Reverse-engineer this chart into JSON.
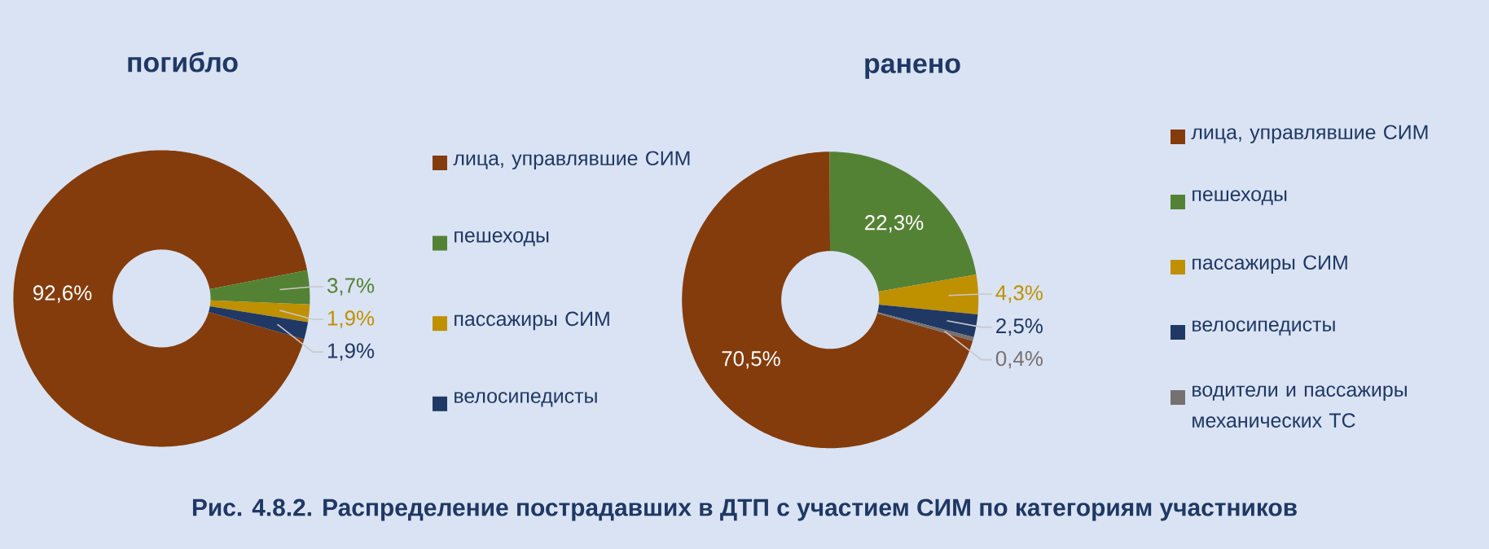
{
  "chart_data": [
    {
      "type": "donut",
      "title": "погибло",
      "categories": [
        "лица, управлявшие СИМ",
        "пешеходы",
        "пассажиры СИМ",
        "велосипедисты"
      ],
      "values": [
        92.6,
        3.7,
        1.9,
        1.9
      ],
      "value_labels": [
        "92,6%",
        "3,7%",
        "1,9%",
        "1,9%"
      ],
      "colors": [
        "#843c0c",
        "#548235",
        "#bf9000",
        "#203864"
      ],
      "legend": "right",
      "annotations": [
        "Рис. 4.8.2. Распределение пострадавших в ДТП с участием СИМ по категориям участников"
      ]
    },
    {
      "type": "donut",
      "title": "ранено",
      "categories": [
        "лица, управлявшие СИМ",
        "пешеходы",
        "пассажиры СИМ",
        "велосипедисты",
        "водители и пассажиры механических ТС"
      ],
      "values": [
        70.5,
        22.3,
        4.3,
        2.5,
        0.4
      ],
      "value_labels": [
        "70,5%",
        "22,3%",
        "4,3%",
        "2,5%",
        "0,4%"
      ],
      "colors": [
        "#843c0c",
        "#548235",
        "#bf9000",
        "#203864",
        "#767171"
      ],
      "legend": "right"
    }
  ]
}
